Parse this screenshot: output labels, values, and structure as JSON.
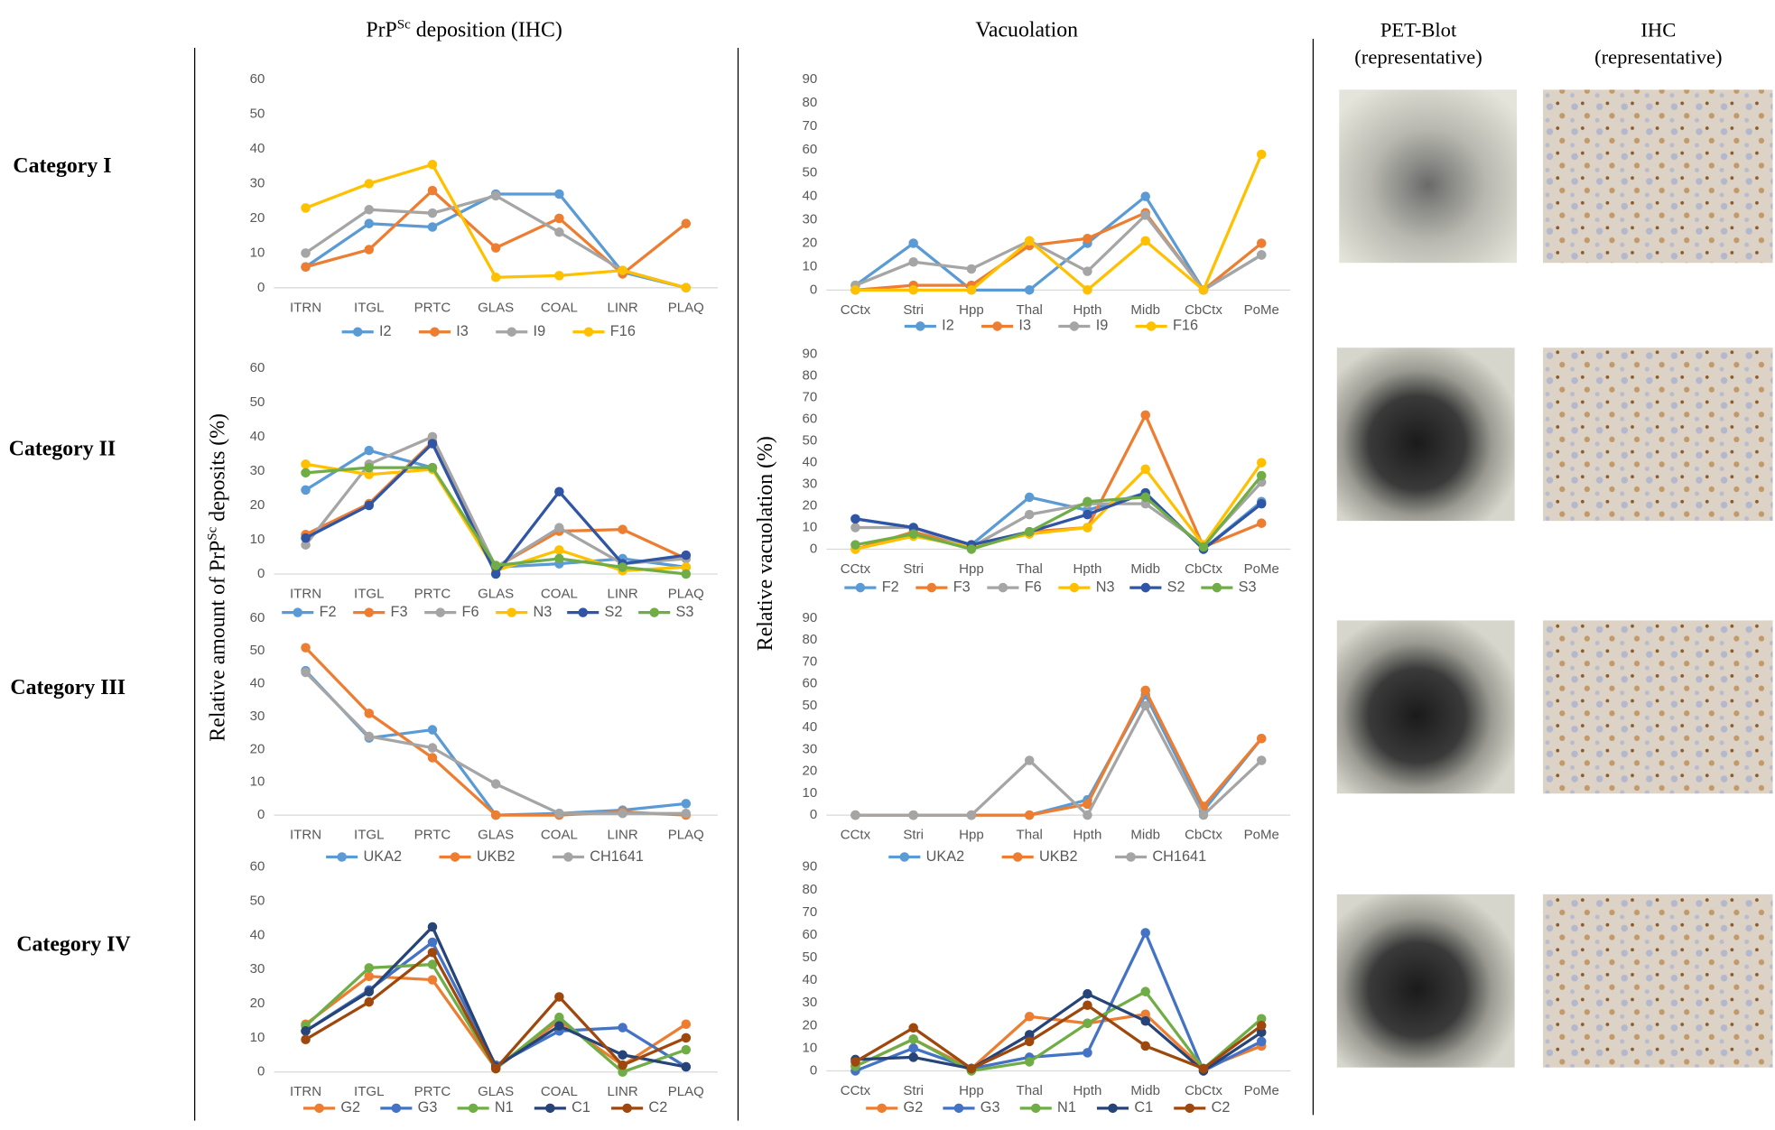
{
  "column_titles": [
    {
      "text": "PrP",
      "superscript": "Sc",
      "after": " deposition (IHC)"
    },
    {
      "text": "Vacuolation"
    },
    {
      "lines": [
        "PET-Blot",
        "(representative)"
      ]
    },
    {
      "lines": [
        "IHC",
        "(representative)"
      ]
    }
  ],
  "row_labels": [
    "Category I",
    "Category II",
    "Category III",
    "Category IV"
  ],
  "y_axis_labels": [
    {
      "text": "Relative amount of PrP",
      "superscript": "Sc",
      "after": " deposits (%)"
    },
    {
      "text": "Relative vacuolation (%)"
    }
  ],
  "chart_data": [
    {
      "type": "line",
      "categories": [
        "ITRN",
        "ITGL",
        "PRTC",
        "GLAS",
        "COAL",
        "LINR",
        "PLAQ"
      ],
      "ylim": [
        0,
        60
      ],
      "yticks": [
        0,
        10,
        20,
        30,
        40,
        50,
        60
      ],
      "series": [
        {
          "name": "I2",
          "color": "#5b9bd5",
          "values": [
            6,
            18.5,
            17.5,
            27,
            27,
            4.5,
            0
          ]
        },
        {
          "name": "I3",
          "color": "#ed7d31",
          "values": [
            6,
            11,
            28,
            11.5,
            20,
            4,
            18.5
          ]
        },
        {
          "name": "I9",
          "color": "#a5a5a5",
          "values": [
            10,
            22.5,
            21.5,
            26.5,
            16,
            5,
            0
          ]
        },
        {
          "name": "F16",
          "color": "#ffc000",
          "values": [
            23,
            30,
            35.5,
            3,
            3.5,
            5,
            0
          ]
        }
      ]
    },
    {
      "type": "line",
      "categories": [
        "CCtx",
        "Stri",
        "Hpp",
        "Thal",
        "Hpth",
        "Midb",
        "CbCtx",
        "PoMe"
      ],
      "ylim": [
        0,
        90
      ],
      "yticks": [
        0,
        10,
        20,
        30,
        40,
        50,
        60,
        70,
        80,
        90
      ],
      "series": [
        {
          "name": "I2",
          "color": "#5b9bd5",
          "values": [
            2,
            20,
            0,
            0,
            20,
            40,
            0,
            15
          ]
        },
        {
          "name": "I3",
          "color": "#ed7d31",
          "values": [
            0,
            2,
            2,
            19,
            22,
            33,
            0,
            20
          ]
        },
        {
          "name": "I9",
          "color": "#a5a5a5",
          "values": [
            2,
            12,
            9,
            21,
            8,
            32,
            0,
            15
          ]
        },
        {
          "name": "F16",
          "color": "#ffc000",
          "values": [
            0,
            0,
            0,
            21,
            0,
            21,
            0,
            58
          ]
        }
      ]
    },
    {
      "type": "line",
      "categories": [
        "ITRN",
        "ITGL",
        "PRTC",
        "GLAS",
        "COAL",
        "LINR",
        "PLAQ"
      ],
      "ylim": [
        0,
        60
      ],
      "yticks": [
        0,
        10,
        20,
        30,
        40,
        50,
        60
      ],
      "series": [
        {
          "name": "F2",
          "color": "#5b9bd5",
          "values": [
            24.5,
            36,
            31,
            2,
            3,
            4.5,
            2
          ]
        },
        {
          "name": "F3",
          "color": "#ed7d31",
          "values": [
            11.5,
            20.5,
            38.5,
            2,
            12.5,
            13,
            4.5
          ]
        },
        {
          "name": "F6",
          "color": "#a5a5a5",
          "values": [
            8.5,
            32,
            40,
            2,
            13.5,
            3,
            4.5
          ]
        },
        {
          "name": "N3",
          "color": "#ffc000",
          "values": [
            32,
            29,
            30.5,
            1,
            7,
            1,
            2
          ]
        },
        {
          "name": "S2",
          "color": "#2f55a4",
          "values": [
            10.5,
            20,
            38,
            0,
            24,
            3,
            5.5
          ]
        },
        {
          "name": "S3",
          "color": "#70ad47",
          "values": [
            29.5,
            31,
            31,
            2.5,
            4.5,
            2,
            0
          ]
        }
      ]
    },
    {
      "type": "line",
      "categories": [
        "CCtx",
        "Stri",
        "Hpp",
        "Thal",
        "Hpth",
        "Midb",
        "CbCtx",
        "PoMe"
      ],
      "ylim": [
        0,
        90
      ],
      "yticks": [
        0,
        10,
        20,
        30,
        40,
        50,
        60,
        70,
        80,
        90
      ],
      "series": [
        {
          "name": "F2",
          "color": "#5b9bd5",
          "values": [
            14,
            10,
            2,
            24,
            18,
            26,
            0,
            22
          ]
        },
        {
          "name": "F3",
          "color": "#ed7d31",
          "values": [
            0,
            8,
            1,
            8,
            10,
            62,
            1,
            12
          ]
        },
        {
          "name": "F6",
          "color": "#a5a5a5",
          "values": [
            10,
            10,
            1,
            16,
            21,
            21,
            2,
            31
          ]
        },
        {
          "name": "N3",
          "color": "#ffc000",
          "values": [
            0,
            6,
            1,
            7,
            10,
            37,
            2,
            40
          ]
        },
        {
          "name": "S2",
          "color": "#2f55a4",
          "values": [
            14,
            10,
            2,
            8,
            16,
            26,
            0,
            21
          ]
        },
        {
          "name": "S3",
          "color": "#70ad47",
          "values": [
            2,
            7,
            0,
            8,
            22,
            24,
            1,
            34
          ]
        }
      ]
    },
    {
      "type": "line",
      "categories": [
        "ITRN",
        "ITGL",
        "PRTC",
        "GLAS",
        "COAL",
        "LINR",
        "PLAQ"
      ],
      "ylim": [
        0,
        60
      ],
      "yticks": [
        0,
        10,
        20,
        30,
        40,
        50,
        60
      ],
      "series": [
        {
          "name": "UKA2",
          "color": "#5b9bd5",
          "values": [
            44,
            23.5,
            26,
            0,
            0.5,
            1.5,
            3.5
          ]
        },
        {
          "name": "UKB2",
          "color": "#ed7d31",
          "values": [
            51,
            31,
            17.5,
            0,
            0,
            1,
            0
          ]
        },
        {
          "name": "CH1641",
          "color": "#a5a5a5",
          "values": [
            43.5,
            24,
            20.5,
            9.5,
            0.5,
            0.5,
            0.5
          ]
        }
      ]
    },
    {
      "type": "line",
      "categories": [
        "CCtx",
        "Stri",
        "Hpp",
        "Thal",
        "Hpth",
        "Midb",
        "CbCtx",
        "PoMe"
      ],
      "ylim": [
        0,
        90
      ],
      "yticks": [
        0,
        10,
        20,
        30,
        40,
        50,
        60,
        70,
        80,
        90
      ],
      "series": [
        {
          "name": "UKA2",
          "color": "#5b9bd5",
          "values": [
            0,
            0,
            0,
            0,
            7,
            55,
            2,
            35
          ]
        },
        {
          "name": "UKB2",
          "color": "#ed7d31",
          "values": [
            0,
            0,
            0,
            0,
            5,
            57,
            4,
            35
          ]
        },
        {
          "name": "CH1641",
          "color": "#a5a5a5",
          "values": [
            0,
            0,
            0,
            25,
            0,
            50,
            0,
            25
          ]
        }
      ]
    },
    {
      "type": "line",
      "categories": [
        "ITRN",
        "ITGL",
        "PRTC",
        "GLAS",
        "COAL",
        "LINR",
        "PLAQ"
      ],
      "ylim": [
        0,
        60
      ],
      "yticks": [
        0,
        10,
        20,
        30,
        40,
        50,
        60
      ],
      "series": [
        {
          "name": "G2",
          "color": "#ed7d31",
          "values": [
            14,
            28,
            27,
            1,
            15,
            2,
            14
          ]
        },
        {
          "name": "G3",
          "color": "#4472c4",
          "values": [
            12,
            24,
            38,
            2,
            12,
            13,
            1.5
          ]
        },
        {
          "name": "N1",
          "color": "#70ad47",
          "values": [
            13.5,
            30.5,
            31.5,
            1,
            16,
            0,
            6.5
          ]
        },
        {
          "name": "C1",
          "color": "#264478",
          "values": [
            12,
            23.5,
            42.5,
            1.5,
            13.5,
            5,
            1.5
          ]
        },
        {
          "name": "C2",
          "color": "#9e480e",
          "values": [
            9.5,
            20.5,
            35,
            1,
            22,
            2,
            10
          ]
        }
      ]
    },
    {
      "type": "line",
      "categories": [
        "CCtx",
        "Stri",
        "Hpp",
        "Thal",
        "Hpth",
        "Midb",
        "CbCtx",
        "PoMe"
      ],
      "ylim": [
        0,
        90
      ],
      "yticks": [
        0,
        10,
        20,
        30,
        40,
        50,
        60,
        70,
        80,
        90
      ],
      "series": [
        {
          "name": "G2",
          "color": "#ed7d31",
          "values": [
            2,
            14,
            1,
            24,
            21,
            25,
            1,
            11
          ]
        },
        {
          "name": "G3",
          "color": "#4472c4",
          "values": [
            0,
            10,
            1,
            6,
            8,
            61,
            0,
            13
          ]
        },
        {
          "name": "N1",
          "color": "#70ad47",
          "values": [
            2,
            14,
            0,
            4,
            21,
            35,
            1,
            23
          ]
        },
        {
          "name": "C1",
          "color": "#264478",
          "values": [
            5,
            6,
            1,
            16,
            34,
            22,
            0,
            17
          ]
        },
        {
          "name": "C2",
          "color": "#9e480e",
          "values": [
            4,
            19,
            1,
            13,
            29,
            11,
            1,
            20
          ]
        }
      ]
    }
  ]
}
